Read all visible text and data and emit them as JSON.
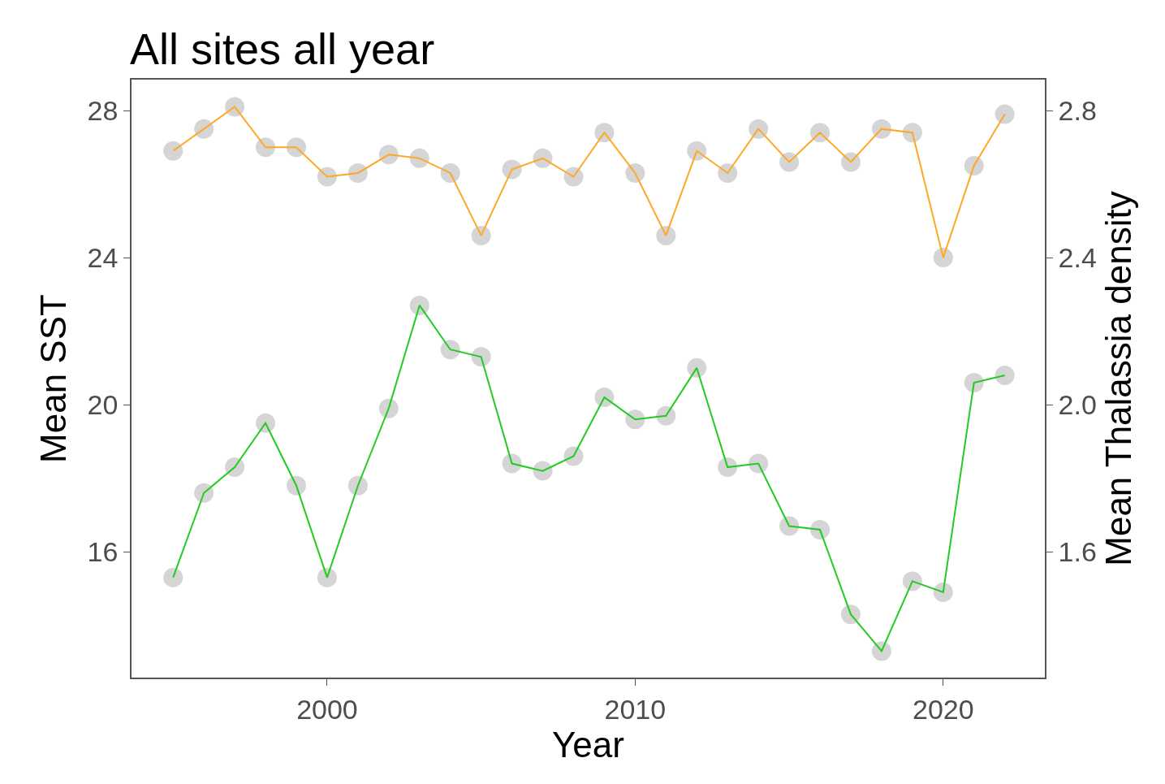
{
  "chart_data": {
    "type": "line",
    "title": "All sites all year",
    "xlabel": "Year",
    "ylabel": "Mean SST",
    "y2label": "Mean Thalassia density",
    "x": [
      1995,
      1996,
      1997,
      1998,
      1999,
      2000,
      2001,
      2002,
      2003,
      2004,
      2005,
      2006,
      2007,
      2008,
      2009,
      2010,
      2011,
      2012,
      2013,
      2014,
      2015,
      2016,
      2017,
      2018,
      2019,
      2020,
      2021,
      2022
    ],
    "series": [
      {
        "color": "#ffa826",
        "values": [
          26.9,
          27.5,
          28.1,
          27.0,
          27.0,
          26.2,
          26.3,
          26.8,
          26.7,
          26.3,
          24.6,
          26.4,
          26.7,
          26.2,
          27.4,
          26.3,
          24.6,
          26.9,
          26.3,
          27.5,
          26.6,
          27.4,
          26.6,
          27.5,
          27.4,
          24.0,
          26.5,
          27.9
        ]
      },
      {
        "color": "#22cc22",
        "axis": "y2",
        "values": [
          1.53,
          1.76,
          1.83,
          1.95,
          1.78,
          1.53,
          1.78,
          1.99,
          2.27,
          2.15,
          2.13,
          1.84,
          1.82,
          1.86,
          2.02,
          1.96,
          1.97,
          2.1,
          1.83,
          1.84,
          1.67,
          1.66,
          1.43,
          1.33,
          1.52,
          1.49,
          2.06,
          2.08
        ]
      }
    ],
    "xlim": [
      1993.65,
      2023.3
    ],
    "xticks": [
      2000,
      2010,
      2020
    ],
    "ylim": [
      12.58,
      28.84
    ],
    "yticks": [
      16,
      20,
      24,
      28
    ],
    "y2lim": [
      1.258,
      2.884
    ],
    "y2ticks": [
      {
        "value": 1.6,
        "label": "1.6"
      },
      {
        "value": 2.0,
        "label": "2.0"
      },
      {
        "value": 2.4,
        "label": "2.4"
      },
      {
        "value": 2.8,
        "label": "2.8"
      }
    ],
    "marker": "circle",
    "line_style": "solid"
  }
}
